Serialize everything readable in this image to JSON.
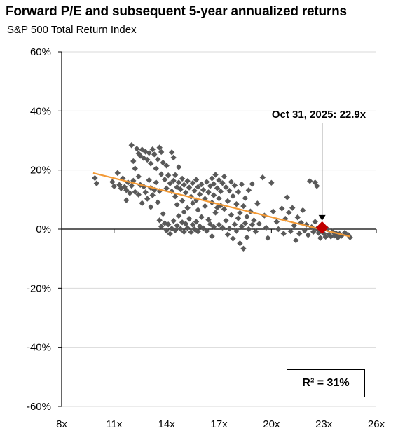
{
  "chart_data": {
    "type": "scatter",
    "title": "Forward P/E and subsequent 5-year annualized returns",
    "subtitle": "S&P 500 Total Return Index",
    "xlabel": "",
    "ylabel": "",
    "xlim": [
      8,
      26
    ],
    "ylim": [
      -60,
      60
    ],
    "x_ticks": [
      "8x",
      "11x",
      "14x",
      "17x",
      "20x",
      "23x",
      "26x"
    ],
    "x_tick_values": [
      8,
      11,
      14,
      17,
      20,
      23,
      26
    ],
    "y_ticks": [
      "60%",
      "40%",
      "20%",
      "0%",
      "-20%",
      "-40%",
      "-60%"
    ],
    "y_tick_values": [
      60,
      40,
      20,
      0,
      -20,
      -40,
      -60
    ],
    "grid": "horizontal",
    "legend": "none",
    "colors": {
      "points": "#595959",
      "trend": "#f39a36",
      "current": "#c00000"
    },
    "points": [
      [
        9.9,
        17.3
      ],
      [
        10.0,
        15.5
      ],
      [
        10.9,
        16.0
      ],
      [
        11.0,
        14.5
      ],
      [
        11.2,
        19.0
      ],
      [
        11.3,
        15.0
      ],
      [
        11.4,
        13.8
      ],
      [
        11.5,
        17.2
      ],
      [
        11.6,
        14.3
      ],
      [
        11.7,
        13.2
      ],
      [
        11.7,
        9.8
      ],
      [
        11.8,
        15.8
      ],
      [
        11.9,
        12.2
      ],
      [
        12.0,
        14.7
      ],
      [
        12.1,
        16.4
      ],
      [
        12.0,
        28.4
      ],
      [
        12.1,
        23.0
      ],
      [
        12.2,
        20.5
      ],
      [
        12.2,
        12.6
      ],
      [
        12.3,
        27.2
      ],
      [
        12.4,
        25.6
      ],
      [
        12.4,
        17.8
      ],
      [
        12.4,
        11.7
      ],
      [
        12.5,
        24.8
      ],
      [
        12.5,
        15.0
      ],
      [
        12.6,
        26.9
      ],
      [
        12.6,
        8.8
      ],
      [
        12.7,
        24.0
      ],
      [
        12.7,
        14.4
      ],
      [
        12.8,
        26.2
      ],
      [
        12.8,
        12.5
      ],
      [
        12.9,
        23.5
      ],
      [
        12.9,
        10.3
      ],
      [
        13.0,
        25.8
      ],
      [
        13.0,
        16.6
      ],
      [
        13.1,
        22.2
      ],
      [
        13.1,
        14.0
      ],
      [
        13.1,
        7.5
      ],
      [
        13.2,
        27.0
      ],
      [
        13.2,
        11.5
      ],
      [
        13.3,
        25.3
      ],
      [
        13.3,
        13.3
      ],
      [
        13.4,
        20.5
      ],
      [
        13.4,
        15.8
      ],
      [
        13.5,
        23.6
      ],
      [
        13.5,
        9.1
      ],
      [
        13.6,
        27.6
      ],
      [
        13.6,
        12.9
      ],
      [
        13.6,
        3.0
      ],
      [
        13.7,
        26.1
      ],
      [
        13.7,
        18.6
      ],
      [
        13.7,
        0.9
      ],
      [
        13.8,
        22.5
      ],
      [
        13.8,
        5.2
      ],
      [
        13.9,
        16.8
      ],
      [
        13.9,
        2.0
      ],
      [
        14.0,
        21.5
      ],
      [
        14.0,
        13.8
      ],
      [
        14.0,
        -0.5
      ],
      [
        14.1,
        18.2
      ],
      [
        14.1,
        1.6
      ],
      [
        14.2,
        15.5
      ],
      [
        14.2,
        -1.6
      ],
      [
        14.3,
        26.0
      ],
      [
        14.3,
        12.8
      ],
      [
        14.3,
        0.2
      ],
      [
        14.4,
        24.2
      ],
      [
        14.4,
        16.4
      ],
      [
        14.4,
        2.8
      ],
      [
        14.5,
        18.3
      ],
      [
        14.5,
        11.1
      ],
      [
        14.5,
        -0.4
      ],
      [
        14.6,
        14.2
      ],
      [
        14.6,
        8.3
      ],
      [
        14.6,
        1.2
      ],
      [
        14.7,
        21.0
      ],
      [
        14.7,
        15.8
      ],
      [
        14.7,
        4.5
      ],
      [
        14.8,
        13.5
      ],
      [
        14.8,
        0.1
      ],
      [
        14.9,
        17.1
      ],
      [
        14.9,
        9.6
      ],
      [
        14.9,
        2.3
      ],
      [
        15.0,
        15.0
      ],
      [
        15.0,
        5.8
      ],
      [
        15.0,
        -0.9
      ],
      [
        15.1,
        12.4
      ],
      [
        15.1,
        1.8
      ],
      [
        15.2,
        16.3
      ],
      [
        15.2,
        7.2
      ],
      [
        15.2,
        0.4
      ],
      [
        15.3,
        14.1
      ],
      [
        15.3,
        3.5
      ],
      [
        15.4,
        11.0
      ],
      [
        15.4,
        -1.0
      ],
      [
        15.5,
        15.6
      ],
      [
        15.5,
        8.8
      ],
      [
        15.5,
        1.5
      ],
      [
        15.6,
        13.0
      ],
      [
        15.6,
        0.0
      ],
      [
        15.7,
        16.7
      ],
      [
        15.7,
        9.8
      ],
      [
        15.7,
        2.5
      ],
      [
        15.8,
        14.3
      ],
      [
        15.8,
        6.5
      ],
      [
        15.8,
        -0.8
      ],
      [
        15.9,
        11.8
      ],
      [
        15.9,
        1.0
      ],
      [
        16.0,
        15.2
      ],
      [
        16.0,
        4.1
      ],
      [
        16.1,
        13.3
      ],
      [
        16.1,
        0.3
      ],
      [
        16.2,
        10.3
      ],
      [
        16.2,
        7.8
      ],
      [
        16.3,
        16.0
      ],
      [
        16.3,
        -0.6
      ],
      [
        16.4,
        12.5
      ],
      [
        16.4,
        3.2
      ],
      [
        16.5,
        14.6
      ],
      [
        16.5,
        1.7
      ],
      [
        16.6,
        17.2
      ],
      [
        16.6,
        9.0
      ],
      [
        16.6,
        -2.4
      ],
      [
        16.7,
        15.3
      ],
      [
        16.7,
        11.5
      ],
      [
        16.7,
        0.8
      ],
      [
        16.8,
        18.4
      ],
      [
        16.8,
        5.6
      ],
      [
        16.9,
        13.9
      ],
      [
        16.9,
        7.3
      ],
      [
        17.0,
        16.6
      ],
      [
        17.0,
        10.4
      ],
      [
        17.0,
        1.5
      ],
      [
        17.1,
        12.8
      ],
      [
        17.1,
        8.0
      ],
      [
        17.2,
        15.6
      ],
      [
        17.2,
        0.5
      ],
      [
        17.3,
        17.8
      ],
      [
        17.3,
        6.8
      ],
      [
        17.4,
        14.2
      ],
      [
        17.4,
        2.9
      ],
      [
        17.5,
        9.5
      ],
      [
        17.5,
        -1.8
      ],
      [
        17.6,
        13.0
      ],
      [
        17.6,
        0.2
      ],
      [
        17.7,
        16.0
      ],
      [
        17.7,
        4.8
      ],
      [
        17.8,
        11.2
      ],
      [
        17.8,
        -3.2
      ],
      [
        17.9,
        14.8
      ],
      [
        17.9,
        1.6
      ],
      [
        18.0,
        8.5
      ],
      [
        18.0,
        -0.6
      ],
      [
        18.1,
        12.6
      ],
      [
        18.1,
        3.7
      ],
      [
        18.2,
        5.5
      ],
      [
        18.2,
        -4.8
      ],
      [
        18.3,
        15.2
      ],
      [
        18.3,
        0.9
      ],
      [
        18.4,
        7.8
      ],
      [
        18.4,
        -6.6
      ],
      [
        18.5,
        10.5
      ],
      [
        18.5,
        2.0
      ],
      [
        18.6,
        4.2
      ],
      [
        18.6,
        -2.8
      ],
      [
        18.7,
        13.2
      ],
      [
        18.7,
        0.0
      ],
      [
        18.8,
        6.0
      ],
      [
        18.9,
        15.3
      ],
      [
        18.9,
        1.5
      ],
      [
        19.0,
        3.0
      ],
      [
        19.1,
        -0.8
      ],
      [
        19.2,
        8.7
      ],
      [
        19.3,
        1.8
      ],
      [
        19.5,
        17.5
      ],
      [
        19.6,
        4.6
      ],
      [
        19.7,
        0.5
      ],
      [
        19.8,
        -3.0
      ],
      [
        20.0,
        15.7
      ],
      [
        20.1,
        6.0
      ],
      [
        20.3,
        2.5
      ],
      [
        20.4,
        0.0
      ],
      [
        20.6,
        7.0
      ],
      [
        20.7,
        -1.5
      ],
      [
        20.8,
        3.5
      ],
      [
        20.9,
        10.8
      ],
      [
        21.0,
        5.6
      ],
      [
        21.1,
        -0.7
      ],
      [
        21.2,
        7.2
      ],
      [
        21.3,
        1.2
      ],
      [
        21.4,
        -3.8
      ],
      [
        21.5,
        4.0
      ],
      [
        21.6,
        -1.5
      ],
      [
        21.7,
        2.2
      ],
      [
        21.8,
        6.4
      ],
      [
        21.9,
        -0.5
      ],
      [
        22.0,
        1.5
      ],
      [
        22.1,
        -2.0
      ],
      [
        22.2,
        16.3
      ],
      [
        22.3,
        0.7
      ],
      [
        22.4,
        -0.9
      ],
      [
        22.5,
        15.8
      ],
      [
        22.5,
        2.5
      ],
      [
        22.6,
        14.6
      ],
      [
        22.6,
        0.1
      ],
      [
        22.7,
        -1.3
      ],
      [
        22.8,
        -3.0
      ],
      [
        22.9,
        0.4
      ],
      [
        23.0,
        -1.5
      ],
      [
        23.1,
        -2.6
      ],
      [
        23.2,
        0.0
      ],
      [
        23.3,
        -1.8
      ],
      [
        23.4,
        -2.5
      ],
      [
        23.5,
        -0.8
      ],
      [
        23.6,
        -2.2
      ],
      [
        23.7,
        -1.4
      ],
      [
        23.8,
        -2.9
      ],
      [
        23.9,
        -1.6
      ],
      [
        24.0,
        -2.3
      ],
      [
        24.2,
        -1.2
      ],
      [
        24.4,
        -2.0
      ],
      [
        24.5,
        -2.8
      ]
    ],
    "trendline": {
      "x": [
        9.8,
        24.5
      ],
      "y": [
        19.0,
        -2.5
      ]
    },
    "current_point": {
      "x": 22.9,
      "y": 0.5
    },
    "annotation": "Oct 31, 2025:  22.9x",
    "r_squared_label": "R² = 31%"
  }
}
